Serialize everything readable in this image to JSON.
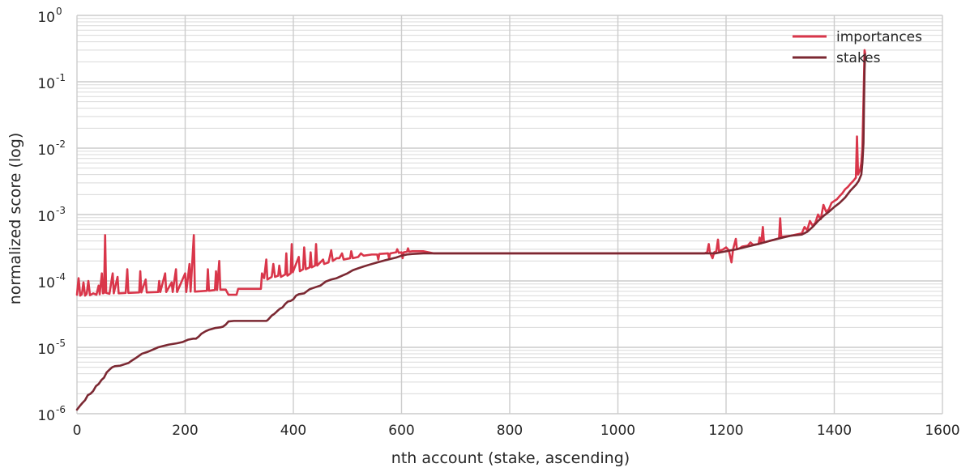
{
  "chart_data": {
    "type": "line",
    "title": "",
    "xlabel": "nth account (stake, ascending)",
    "ylabel": "normalized score (log)",
    "xlim": [
      0,
      1600
    ],
    "ylim": [
      1e-06,
      1
    ],
    "yscale": "log",
    "grid": true,
    "legend_position": "top-right",
    "x_ticks": [
      0,
      200,
      400,
      600,
      800,
      1000,
      1200,
      1400,
      1600
    ],
    "x_tick_labels": [
      "0",
      "200",
      "400",
      "600",
      "800",
      "1000",
      "1200",
      "1400",
      "1600"
    ],
    "y_ticks": [
      {
        "value": 1e-06,
        "base": "10",
        "exp": "-6"
      },
      {
        "value": 1e-05,
        "base": "10",
        "exp": "-5"
      },
      {
        "value": 0.0001,
        "base": "10",
        "exp": "-4"
      },
      {
        "value": 0.001,
        "base": "10",
        "exp": "-3"
      },
      {
        "value": 0.01,
        "base": "10",
        "exp": "-2"
      },
      {
        "value": 0.1,
        "base": "10",
        "exp": "-1"
      },
      {
        "value": 1,
        "base": "10",
        "exp": "0"
      }
    ],
    "series": [
      {
        "name": "importances",
        "color": "#d9364a",
        "points": [
          [
            0,
            6.2e-05
          ],
          [
            3,
            0.00011
          ],
          [
            6,
            6e-05
          ],
          [
            9,
            6.3e-05
          ],
          [
            12,
            9.5e-05
          ],
          [
            15,
            6e-05
          ],
          [
            18,
            6.4e-05
          ],
          [
            21,
            0.0001
          ],
          [
            24,
            6.1e-05
          ],
          [
            30,
            6.5e-05
          ],
          [
            36,
            6.2e-05
          ],
          [
            40,
            8.5e-05
          ],
          [
            42,
            6.3e-05
          ],
          [
            46,
            0.00013
          ],
          [
            48,
            6.5e-05
          ],
          [
            50,
            6.6e-05
          ],
          [
            52,
            0.00049
          ],
          [
            54,
            6.6e-05
          ],
          [
            60,
            6.4e-05
          ],
          [
            66,
            0.00013
          ],
          [
            68,
            6.5e-05
          ],
          [
            75,
            0.000115
          ],
          [
            77,
            6.5e-05
          ],
          [
            90,
            6.6e-05
          ],
          [
            93,
            0.00015
          ],
          [
            95,
            6.6e-05
          ],
          [
            115,
            6.7e-05
          ],
          [
            117,
            0.00014
          ],
          [
            119,
            6.7e-05
          ],
          [
            127,
            0.000105
          ],
          [
            129,
            6.7e-05
          ],
          [
            150,
            6.8e-05
          ],
          [
            152,
            0.0001
          ],
          [
            154,
            6.8e-05
          ],
          [
            163,
            0.00013
          ],
          [
            165,
            6.8e-05
          ],
          [
            175,
            9.5e-05
          ],
          [
            177,
            6.8e-05
          ],
          [
            183,
            0.00015
          ],
          [
            185,
            6.8e-05
          ],
          [
            200,
            0.00013
          ],
          [
            202,
            6.8e-05
          ],
          [
            208,
            0.00018
          ],
          [
            210,
            6.9e-05
          ],
          [
            216,
            0.00049
          ],
          [
            218,
            6.9e-05
          ],
          [
            240,
            7.1e-05
          ],
          [
            242,
            0.00015
          ],
          [
            244,
            7.1e-05
          ],
          [
            255,
            7.3e-05
          ],
          [
            257,
            0.00014
          ],
          [
            259,
            7.3e-05
          ],
          [
            263,
            0.0002
          ],
          [
            265,
            7.4e-05
          ],
          [
            275,
            7.4e-05
          ],
          [
            280,
            6.2e-05
          ],
          [
            295,
            6.2e-05
          ],
          [
            298,
            7.6e-05
          ],
          [
            340,
            7.6e-05
          ],
          [
            342,
            0.00013
          ],
          [
            346,
            0.00011
          ],
          [
            350,
            0.00021
          ],
          [
            352,
            0.000105
          ],
          [
            360,
            0.000115
          ],
          [
            363,
            0.00018
          ],
          [
            366,
            0.000115
          ],
          [
            372,
            0.00012
          ],
          [
            374,
            0.00017
          ],
          [
            377,
            0.000115
          ],
          [
            385,
            0.000125
          ],
          [
            387,
            0.00026
          ],
          [
            389,
            0.00012
          ],
          [
            395,
            0.00013
          ],
          [
            397,
            0.00036
          ],
          [
            399,
            0.000135
          ],
          [
            410,
            0.00023
          ],
          [
            412,
            0.00014
          ],
          [
            418,
            0.00015
          ],
          [
            420,
            0.00032
          ],
          [
            423,
            0.00015
          ],
          [
            430,
            0.00016
          ],
          [
            432,
            0.00027
          ],
          [
            434,
            0.00016
          ],
          [
            440,
            0.00017
          ],
          [
            442,
            0.00036
          ],
          [
            444,
            0.00017
          ],
          [
            455,
            0.00021
          ],
          [
            457,
            0.00018
          ],
          [
            465,
            0.00019
          ],
          [
            470,
            0.00029
          ],
          [
            473,
            0.0002
          ],
          [
            480,
            0.00022
          ],
          [
            485,
            0.00022
          ],
          [
            490,
            0.00026
          ],
          [
            493,
            0.00021
          ],
          [
            505,
            0.00022
          ],
          [
            507,
            0.00028
          ],
          [
            510,
            0.00022
          ],
          [
            520,
            0.00023
          ],
          [
            525,
            0.00026
          ],
          [
            530,
            0.00024
          ],
          [
            545,
            0.00025
          ],
          [
            555,
            0.00025
          ],
          [
            557,
            0.00021
          ],
          [
            559,
            0.000255
          ],
          [
            575,
            0.00026
          ],
          [
            577,
            0.00022
          ],
          [
            579,
            0.00026
          ],
          [
            590,
            0.00027
          ],
          [
            592,
            0.0003
          ],
          [
            595,
            0.000265
          ],
          [
            600,
            0.00027
          ],
          [
            602,
            0.00022
          ],
          [
            604,
            0.00027
          ],
          [
            610,
            0.000275
          ],
          [
            612,
            0.00031
          ],
          [
            614,
            0.000275
          ],
          [
            620,
            0.00028
          ],
          [
            640,
            0.00028
          ],
          [
            660,
            0.00026
          ],
          [
            1160,
            0.00026
          ],
          [
            1165,
            0.00027
          ],
          [
            1168,
            0.00036
          ],
          [
            1170,
            0.00027
          ],
          [
            1175,
            0.00022
          ],
          [
            1178,
            0.00027
          ],
          [
            1182,
            0.00028
          ],
          [
            1185,
            0.00042
          ],
          [
            1187,
            0.00028
          ],
          [
            1195,
            0.0003
          ],
          [
            1200,
            0.00032
          ],
          [
            1205,
            0.00029
          ],
          [
            1210,
            0.00019
          ],
          [
            1213,
            0.0003
          ],
          [
            1218,
            0.00043
          ],
          [
            1220,
            0.0003
          ],
          [
            1225,
            0.00031
          ],
          [
            1230,
            0.00033
          ],
          [
            1240,
            0.00034
          ],
          [
            1245,
            0.00038
          ],
          [
            1250,
            0.00035
          ],
          [
            1260,
            0.00036
          ],
          [
            1262,
            0.00045
          ],
          [
            1265,
            0.00037
          ],
          [
            1268,
            0.00065
          ],
          [
            1270,
            0.00038
          ],
          [
            1280,
            0.0004
          ],
          [
            1290,
            0.00042
          ],
          [
            1298,
            0.00044
          ],
          [
            1300,
            0.00088
          ],
          [
            1302,
            0.00046
          ],
          [
            1310,
            0.00047
          ],
          [
            1320,
            0.00048
          ],
          [
            1330,
            0.0005
          ],
          [
            1340,
            0.00052
          ],
          [
            1345,
            0.00065
          ],
          [
            1350,
            0.00058
          ],
          [
            1355,
            0.0008
          ],
          [
            1360,
            0.00068
          ],
          [
            1365,
            0.00075
          ],
          [
            1370,
            0.001
          ],
          [
            1375,
            0.00085
          ],
          [
            1380,
            0.0014
          ],
          [
            1385,
            0.0011
          ],
          [
            1390,
            0.0012
          ],
          [
            1395,
            0.0015
          ],
          [
            1400,
            0.0016
          ],
          [
            1405,
            0.0017
          ],
          [
            1410,
            0.0019
          ],
          [
            1415,
            0.0021
          ],
          [
            1420,
            0.0024
          ],
          [
            1425,
            0.0026
          ],
          [
            1430,
            0.0029
          ],
          [
            1435,
            0.0032
          ],
          [
            1440,
            0.0036
          ],
          [
            1442,
            0.015
          ],
          [
            1444,
            0.004
          ],
          [
            1448,
            0.0048
          ],
          [
            1450,
            0.006
          ],
          [
            1452,
            0.01
          ],
          [
            1454,
            0.05
          ],
          [
            1456,
            0.3
          ],
          [
            1457,
            0.27
          ]
        ]
      },
      {
        "name": "stakes",
        "color": "#7b2832",
        "points": [
          [
            0,
            1.15e-06
          ],
          [
            5,
            1.3e-06
          ],
          [
            10,
            1.45e-06
          ],
          [
            15,
            1.6e-06
          ],
          [
            20,
            1.9e-06
          ],
          [
            25,
            2e-06
          ],
          [
            30,
            2.2e-06
          ],
          [
            35,
            2.6e-06
          ],
          [
            40,
            2.8e-06
          ],
          [
            45,
            3.2e-06
          ],
          [
            50,
            3.5e-06
          ],
          [
            55,
            4.2e-06
          ],
          [
            60,
            4.6e-06
          ],
          [
            65,
            5e-06
          ],
          [
            70,
            5.2e-06
          ],
          [
            80,
            5.3e-06
          ],
          [
            95,
            5.8e-06
          ],
          [
            100,
            6.2e-06
          ],
          [
            110,
            7e-06
          ],
          [
            120,
            8e-06
          ],
          [
            130,
            8.5e-06
          ],
          [
            140,
            9.2e-06
          ],
          [
            150,
            1e-05
          ],
          [
            160,
            1.05e-05
          ],
          [
            170,
            1.1e-05
          ],
          [
            185,
            1.15e-05
          ],
          [
            195,
            1.2e-05
          ],
          [
            205,
            1.3e-05
          ],
          [
            215,
            1.35e-05
          ],
          [
            220,
            1.35e-05
          ],
          [
            225,
            1.45e-05
          ],
          [
            230,
            1.6e-05
          ],
          [
            238,
            1.75e-05
          ],
          [
            245,
            1.85e-05
          ],
          [
            255,
            1.95e-05
          ],
          [
            265,
            2e-05
          ],
          [
            270,
            2.05e-05
          ],
          [
            275,
            2.2e-05
          ],
          [
            280,
            2.45e-05
          ],
          [
            290,
            2.5e-05
          ],
          [
            300,
            2.5e-05
          ],
          [
            320,
            2.5e-05
          ],
          [
            350,
            2.5e-05
          ],
          [
            352,
            2.55e-05
          ],
          [
            355,
            2.7e-05
          ],
          [
            360,
            3e-05
          ],
          [
            365,
            3.2e-05
          ],
          [
            370,
            3.5e-05
          ],
          [
            375,
            3.8e-05
          ],
          [
            380,
            4e-05
          ],
          [
            385,
            4.5e-05
          ],
          [
            390,
            4.9e-05
          ],
          [
            395,
            5e-05
          ],
          [
            400,
            5.3e-05
          ],
          [
            405,
            6e-05
          ],
          [
            410,
            6.3e-05
          ],
          [
            420,
            6.5e-05
          ],
          [
            430,
            7.5e-05
          ],
          [
            440,
            8e-05
          ],
          [
            450,
            8.5e-05
          ],
          [
            460,
            9.8e-05
          ],
          [
            470,
            0.000105
          ],
          [
            480,
            0.00011
          ],
          [
            490,
            0.00012
          ],
          [
            500,
            0.00013
          ],
          [
            510,
            0.000145
          ],
          [
            520,
            0.000155
          ],
          [
            530,
            0.000165
          ],
          [
            540,
            0.000175
          ],
          [
            550,
            0.000185
          ],
          [
            560,
            0.000195
          ],
          [
            570,
            0.000205
          ],
          [
            580,
            0.000215
          ],
          [
            590,
            0.000225
          ],
          [
            600,
            0.00024
          ],
          [
            610,
            0.00025
          ],
          [
            620,
            0.000255
          ],
          [
            640,
            0.00026
          ],
          [
            660,
            0.00026
          ],
          [
            1180,
            0.00026
          ],
          [
            1190,
            0.00027
          ],
          [
            1200,
            0.00028
          ],
          [
            1210,
            0.00029
          ],
          [
            1220,
            0.0003
          ],
          [
            1230,
            0.000315
          ],
          [
            1240,
            0.00033
          ],
          [
            1250,
            0.000345
          ],
          [
            1260,
            0.00036
          ],
          [
            1270,
            0.00038
          ],
          [
            1280,
            0.0004
          ],
          [
            1290,
            0.00042
          ],
          [
            1300,
            0.00044
          ],
          [
            1310,
            0.00046
          ],
          [
            1320,
            0.00048
          ],
          [
            1340,
            0.0005
          ],
          [
            1350,
            0.00055
          ],
          [
            1360,
            0.00065
          ],
          [
            1370,
            0.0008
          ],
          [
            1380,
            0.00095
          ],
          [
            1390,
            0.0011
          ],
          [
            1400,
            0.0013
          ],
          [
            1410,
            0.0015
          ],
          [
            1420,
            0.0018
          ],
          [
            1430,
            0.0023
          ],
          [
            1440,
            0.0028
          ],
          [
            1445,
            0.0032
          ],
          [
            1450,
            0.004
          ],
          [
            1452,
            0.006
          ],
          [
            1454,
            0.012
          ],
          [
            1455,
            0.05
          ],
          [
            1456,
            0.15
          ],
          [
            1457,
            0.26
          ]
        ]
      }
    ]
  }
}
